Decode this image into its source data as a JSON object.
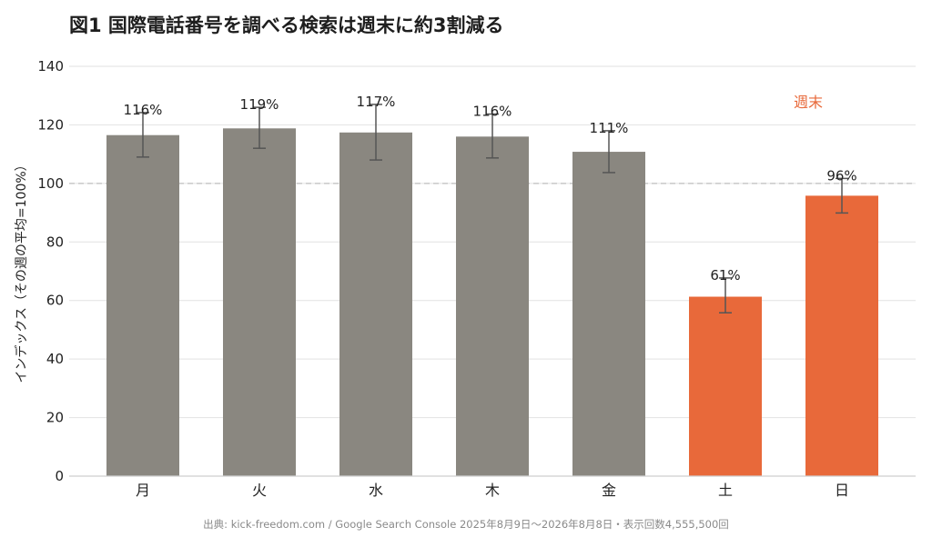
{
  "title": "図1 国際電話番号を調べる検索は週末に約3割減る",
  "source": "出典: kick-freedom.com / Google Search Console 2025年8月9日〜2026年8月8日・表示回数4,555,500回",
  "colors": {
    "weekday": "#8a8780",
    "weekend": "#e8693a",
    "grid": "#e2e2e2",
    "reference": "#bdbdbd",
    "error_bar": "#555555"
  },
  "chart_data": {
    "type": "bar",
    "title": "図1 国際電話番号を調べる検索は週末に約3割減る",
    "xlabel": "",
    "ylabel": "インデックス（その週の平均=100%）",
    "ylim": [
      0,
      140
    ],
    "yticks": [
      "0",
      "20",
      "40",
      "60",
      "80",
      "100",
      "120",
      "140"
    ],
    "grid": true,
    "reference_line": 100,
    "categories": [
      "月",
      "火",
      "水",
      "木",
      "金",
      "土",
      "日"
    ],
    "values": [
      116.5,
      118.8,
      117.4,
      116,
      110.8,
      61.3,
      95.8
    ],
    "error_low": [
      109,
      112,
      108,
      108.7,
      103.7,
      55.8,
      89.9
    ],
    "error_high": [
      124.2,
      126,
      127,
      123.7,
      118,
      67.7,
      101.7
    ],
    "labels": [
      "116%",
      "119%",
      "117%",
      "116%",
      "111%",
      "61%",
      "96%"
    ],
    "highlight": [
      false,
      false,
      false,
      false,
      false,
      true,
      true
    ],
    "annotation": "週末"
  }
}
